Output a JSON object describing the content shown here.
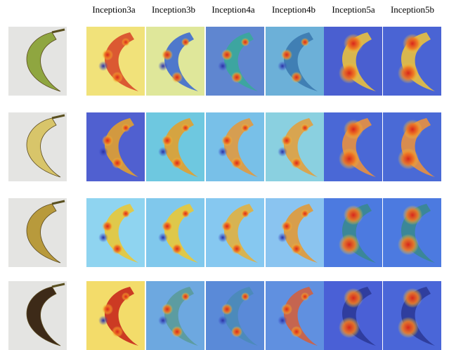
{
  "columns": [
    "Inception3a",
    "Inception3b",
    "Inception4a",
    "Inception4b",
    "Inception5a",
    "Inception5b"
  ]
}
